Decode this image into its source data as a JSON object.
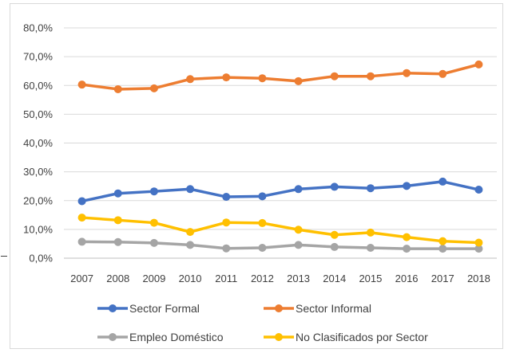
{
  "chart_data": {
    "type": "line",
    "title": "",
    "xlabel": "",
    "ylabel": "",
    "categories": [
      "2007",
      "2008",
      "2009",
      "2010",
      "2011",
      "2012",
      "2013",
      "2014",
      "2015",
      "2016",
      "2017",
      "2018"
    ],
    "ylim": [
      0,
      80
    ],
    "yticks": [
      0,
      10,
      20,
      30,
      40,
      50,
      60,
      70,
      80
    ],
    "ytick_labels": [
      "0,0%",
      "10,0%",
      "20,0%",
      "30,0%",
      "40,0%",
      "50,0%",
      "60,0%",
      "70,0%",
      "80,0%"
    ],
    "grid": true,
    "legend_position": "bottom",
    "series": [
      {
        "name": "Sector Formal",
        "color": "#4472c4",
        "values": [
          19.8,
          22.5,
          23.2,
          24.0,
          21.3,
          21.5,
          24.0,
          24.8,
          24.3,
          25.1,
          26.6,
          23.8
        ]
      },
      {
        "name": "Sector Informal",
        "color": "#ed7d31",
        "values": [
          60.3,
          58.7,
          59.0,
          62.2,
          62.8,
          62.5,
          61.5,
          63.2,
          63.2,
          64.3,
          64.0,
          67.3
        ]
      },
      {
        "name": "Empleo Doméstico",
        "color": "#a5a5a5",
        "values": [
          5.7,
          5.6,
          5.3,
          4.6,
          3.4,
          3.6,
          4.6,
          3.9,
          3.6,
          3.3,
          3.3,
          3.3
        ]
      },
      {
        "name": "No Clasificados por Sector",
        "color": "#ffc000",
        "values": [
          14.1,
          13.2,
          12.3,
          9.1,
          12.4,
          12.2,
          9.9,
          8.1,
          8.9,
          7.3,
          5.9,
          5.4
        ]
      }
    ]
  }
}
